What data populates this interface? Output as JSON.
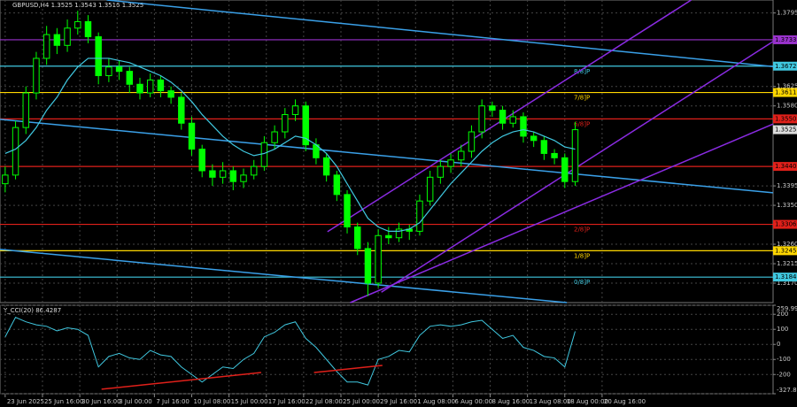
{
  "chart_data": [
    {
      "type": "candlestick",
      "title": "GBPUSD,H4  1.3525 1.3543 1.3516 1.3525",
      "bull_color": "#00ff00",
      "bear_color": "#00ff00",
      "ohlc": [
        [
          1.34,
          1.344,
          1.338,
          1.342
        ],
        [
          1.342,
          1.3545,
          1.341,
          1.353
        ],
        [
          1.353,
          1.3625,
          1.3515,
          1.361
        ],
        [
          1.361,
          1.3705,
          1.3595,
          1.369
        ],
        [
          1.369,
          1.3765,
          1.3675,
          1.3745
        ],
        [
          1.3745,
          1.376,
          1.37,
          1.372
        ],
        [
          1.372,
          1.378,
          1.3705,
          1.376
        ],
        [
          1.376,
          1.38,
          1.3745,
          1.3775
        ],
        [
          1.3775,
          1.379,
          1.3725,
          1.374
        ],
        [
          1.374,
          1.375,
          1.363,
          1.365
        ],
        [
          1.365,
          1.369,
          1.3635,
          1.367
        ],
        [
          1.367,
          1.3685,
          1.364,
          1.366
        ],
        [
          1.366,
          1.367,
          1.361,
          1.363
        ],
        [
          1.363,
          1.3645,
          1.3595,
          1.361
        ],
        [
          1.361,
          1.3655,
          1.36,
          1.364
        ],
        [
          1.364,
          1.365,
          1.36,
          1.3615
        ],
        [
          1.3615,
          1.3625,
          1.3585,
          1.36
        ],
        [
          1.36,
          1.361,
          1.3525,
          1.354
        ],
        [
          1.354,
          1.3555,
          1.3465,
          1.348
        ],
        [
          1.348,
          1.349,
          1.3415,
          1.343
        ],
        [
          1.343,
          1.3445,
          1.3395,
          1.3415
        ],
        [
          1.3415,
          1.345,
          1.34,
          1.343
        ],
        [
          1.343,
          1.344,
          1.3385,
          1.3405
        ],
        [
          1.3405,
          1.3435,
          1.339,
          1.342
        ],
        [
          1.342,
          1.3455,
          1.341,
          1.344
        ],
        [
          1.344,
          1.351,
          1.343,
          1.3495
        ],
        [
          1.3495,
          1.3535,
          1.348,
          1.352
        ],
        [
          1.352,
          1.3575,
          1.3505,
          1.356
        ],
        [
          1.356,
          1.3595,
          1.3545,
          1.358
        ],
        [
          1.358,
          1.359,
          1.3475,
          1.349
        ],
        [
          1.349,
          1.3505,
          1.3445,
          1.346
        ],
        [
          1.346,
          1.347,
          1.3405,
          1.342
        ],
        [
          1.342,
          1.343,
          1.336,
          1.3375
        ],
        [
          1.3375,
          1.3385,
          1.3285,
          1.33
        ],
        [
          1.33,
          1.331,
          1.3235,
          1.325
        ],
        [
          1.325,
          1.3265,
          1.314,
          1.317
        ],
        [
          1.317,
          1.3295,
          1.316,
          1.328
        ],
        [
          1.328,
          1.33,
          1.326,
          1.3275
        ],
        [
          1.3275,
          1.331,
          1.3265,
          1.3295
        ],
        [
          1.3295,
          1.3305,
          1.327,
          1.329
        ],
        [
          1.329,
          1.3375,
          1.328,
          1.336
        ],
        [
          1.336,
          1.343,
          1.335,
          1.3415
        ],
        [
          1.3415,
          1.3455,
          1.34,
          1.344
        ],
        [
          1.344,
          1.347,
          1.3425,
          1.3455
        ],
        [
          1.3455,
          1.349,
          1.344,
          1.3475
        ],
        [
          1.3475,
          1.3535,
          1.346,
          1.352
        ],
        [
          1.352,
          1.3595,
          1.3505,
          1.358
        ],
        [
          1.358,
          1.359,
          1.3555,
          1.357
        ],
        [
          1.357,
          1.358,
          1.3525,
          1.354
        ],
        [
          1.354,
          1.357,
          1.353,
          1.3555
        ],
        [
          1.3555,
          1.3565,
          1.3495,
          1.351
        ],
        [
          1.351,
          1.352,
          1.3485,
          1.35
        ],
        [
          1.35,
          1.351,
          1.3455,
          1.347
        ],
        [
          1.347,
          1.348,
          1.3445,
          1.346
        ],
        [
          1.346,
          1.347,
          1.339,
          1.3405
        ],
        [
          1.3405,
          1.3543,
          1.3395,
          1.3525
        ]
      ],
      "ma": {
        "color": "#40c8e0",
        "values": [
          1.347,
          1.348,
          1.35,
          1.353,
          1.357,
          1.36,
          1.364,
          1.367,
          1.369,
          1.369,
          1.369,
          1.3685,
          1.368,
          1.367,
          1.366,
          1.365,
          1.3635,
          1.3615,
          1.359,
          1.356,
          1.3535,
          1.351,
          1.349,
          1.3475,
          1.3465,
          1.347,
          1.348,
          1.3495,
          1.351,
          1.3505,
          1.349,
          1.347,
          1.344,
          1.34,
          1.336,
          1.332,
          1.33,
          1.329,
          1.329,
          1.3295,
          1.331,
          1.334,
          1.337,
          1.34,
          1.3425,
          1.345,
          1.3475,
          1.3495,
          1.351,
          1.352,
          1.3525,
          1.352,
          1.351,
          1.35,
          1.3485,
          1.348
        ]
      },
      "xlim": [
        -0.5,
        74.1
      ],
      "ylim": [
        1.3125,
        1.3825
      ],
      "grid": true,
      "yticks": [
        1.3795,
        1.3625,
        {
          "value": 1.358,
          "label": "1.3580"
        },
        1.3395,
        {
          "value": 1.335,
          "label": "1.3350"
        },
        {
          "value": 1.326,
          "label": "1.3260"
        },
        1.3215,
        {
          "value": 1.317,
          "label": "1.3170"
        }
      ],
      "xticks": [
        {
          "value": 0,
          "label": "23 Jun 2025"
        },
        {
          "value": 3.6,
          "label": "25 Jun 16:00"
        },
        {
          "value": 7.2,
          "label": "30 Jun 16:00"
        },
        {
          "value": 10.8,
          "label": "3 Jul 00:00"
        },
        {
          "value": 14.4,
          "label": "7 Jul 16:00"
        },
        {
          "value": 18,
          "label": "10 Jul 08:00"
        },
        {
          "value": 21.6,
          "label": "15 Jul 00:00"
        },
        {
          "value": 25.2,
          "label": "17 Jul 16:00"
        },
        {
          "value": 28.8,
          "label": "22 Jul 08:00"
        },
        {
          "value": 32.4,
          "label": "25 Jul 00:00"
        },
        {
          "value": 36,
          "label": "29 Jul 16:00"
        },
        {
          "value": 39.6,
          "label": "1 Aug 08:00"
        },
        {
          "value": 43.2,
          "label": "6 Aug 00:00"
        },
        {
          "value": 46.8,
          "label": "8 Aug 16:00"
        },
        {
          "value": 50.4,
          "label": "13 Aug 08:00"
        },
        {
          "value": 54,
          "label": "18 Aug 00:00"
        },
        {
          "value": 57.6,
          "label": "20 Aug 16:00"
        }
      ],
      "levels": [
        {
          "value": 1.3733,
          "label": "1.3733",
          "color": "#9932cc"
        },
        {
          "value": 1.3672,
          "label": "1.3672",
          "color": "#40c8e0",
          "name": "8/8]P"
        },
        {
          "value": 1.3611,
          "label": "1.3611",
          "color": "#ffd700",
          "name": "7/8]P"
        },
        {
          "value": 1.355,
          "label": "1.3550",
          "color": "#e0201a",
          "name": "6/8]P"
        },
        {
          "value": 1.344,
          "label": "1.3440",
          "color": "#e0201a"
        },
        {
          "value": 1.3306,
          "label": "1.3306",
          "color": "#e0201a",
          "name": "2/8]P"
        },
        {
          "value": 1.3245,
          "label": "1.3245",
          "color": "#ffd700",
          "name": "1/8]P"
        },
        {
          "value": 1.3184,
          "label": "1.3184",
          "color": "#40c8e0",
          "name": "0/8]P"
        }
      ],
      "price_tag": {
        "value": 1.3525,
        "label": "1.3525"
      },
      "trendlines": [
        {
          "color": "#3aa0e8",
          "points": [
            [
              9.8,
              1.3825
            ],
            [
              74.1,
              1.3671
            ]
          ]
        },
        {
          "color": "#3aa0e8",
          "points": [
            [
              -0.5,
              1.3549
            ],
            [
              74.1,
              1.3379
            ]
          ]
        },
        {
          "color": "#3aa0e8",
          "points": [
            [
              -0.5,
              1.3248
            ],
            [
              54.2,
              1.3125
            ]
          ]
        },
        {
          "color": "#8a2be2",
          "points": [
            [
              31.1,
              1.3289
            ],
            [
              66.2,
              1.3825
            ]
          ]
        },
        {
          "color": "#8a2be2",
          "points": [
            [
              36.3,
              1.3149
            ],
            [
              74.1,
              1.3729
            ]
          ]
        },
        {
          "color": "#8a2be2",
          "points": [
            [
              33.3,
              1.3125
            ],
            [
              74.1,
              1.3538
            ]
          ]
        }
      ]
    },
    {
      "type": "line",
      "title": "Y_CCI(20) 86.4287",
      "color": "#40c8e0",
      "values": [
        50,
        180,
        150,
        130,
        120,
        90,
        110,
        100,
        60,
        -150,
        -80,
        -60,
        -90,
        -100,
        -40,
        -70,
        -80,
        -150,
        -200,
        -250,
        -200,
        -150,
        -160,
        -100,
        -60,
        50,
        80,
        130,
        150,
        40,
        -20,
        -100,
        -180,
        -250,
        -250,
        -270,
        -100,
        -80,
        -40,
        -50,
        60,
        120,
        130,
        120,
        130,
        150,
        160,
        100,
        40,
        60,
        -20,
        -40,
        -80,
        -90,
        -150,
        86.4287
      ],
      "xlim": [
        -0.5,
        74.1
      ],
      "ylim": [
        -327.8322,
        259.9969
      ],
      "yticks": [
        259.9969,
        200,
        100,
        0,
        -100,
        -200,
        -327.8322
      ],
      "trendlines": [
        {
          "color": "#e0201a",
          "points": [
            [
              9.3,
              -298
            ],
            [
              24.7,
              -187
            ]
          ]
        },
        {
          "color": "#e0201a",
          "points": [
            [
              29.8,
              -187
            ],
            [
              36.4,
              -140
            ]
          ]
        }
      ]
    }
  ]
}
